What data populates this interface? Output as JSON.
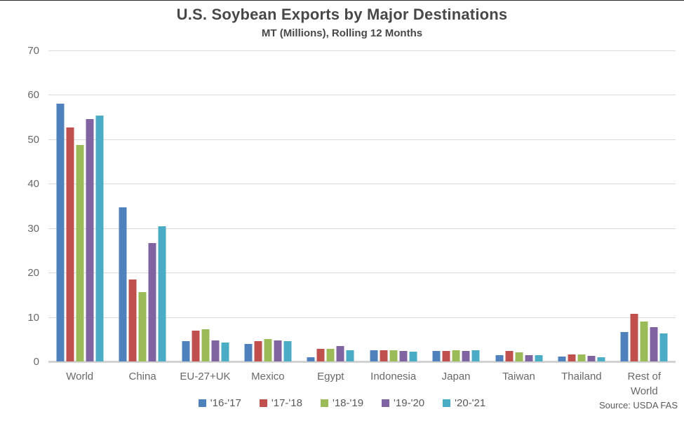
{
  "chart_data": {
    "type": "bar",
    "title": "U.S. Soybean Exports by Major Destinations",
    "subtitle": "MT (Millions), Rolling 12 Months",
    "categories": [
      "World",
      "China",
      "EU-27+UK",
      "Mexico",
      "Egypt",
      "Indonesia",
      "Japan",
      "Taiwan",
      "Thailand",
      "Rest of World"
    ],
    "series": [
      {
        "name": "'16-'17",
        "color": "#4F81BD",
        "values": [
          58.0,
          34.7,
          4.5,
          4.0,
          1.0,
          2.5,
          2.3,
          1.5,
          1.1,
          6.6
        ]
      },
      {
        "name": "'17-'18",
        "color": "#C0504D",
        "values": [
          52.7,
          18.4,
          6.9,
          4.5,
          2.9,
          2.5,
          2.3,
          2.4,
          1.6,
          10.8
        ]
      },
      {
        "name": "'18-'19",
        "color": "#9BBB59",
        "values": [
          48.7,
          15.6,
          7.2,
          5.1,
          2.9,
          2.6,
          2.5,
          2.1,
          1.6,
          9.0
        ]
      },
      {
        "name": "'19-'20",
        "color": "#8064A2",
        "values": [
          54.5,
          26.6,
          4.8,
          4.7,
          3.4,
          2.3,
          2.3,
          1.4,
          1.2,
          7.7
        ]
      },
      {
        "name": "'20-'21",
        "color": "#4BACC6",
        "values": [
          55.4,
          30.4,
          4.2,
          4.6,
          2.6,
          2.2,
          2.5,
          1.5,
          0.9,
          6.3
        ]
      }
    ],
    "ylim": [
      0,
      70
    ],
    "yticks": [
      0,
      10,
      20,
      30,
      40,
      50,
      60,
      70
    ],
    "grid": true,
    "legend_position": "bottom",
    "source": "Source: USDA FAS"
  },
  "colors": {
    "title_text": "#484848",
    "axis_text": "#686868",
    "legend_text": "#595959",
    "gridline": "#dadada",
    "baseline": "#d2d2d2",
    "background": "#ffffff"
  }
}
